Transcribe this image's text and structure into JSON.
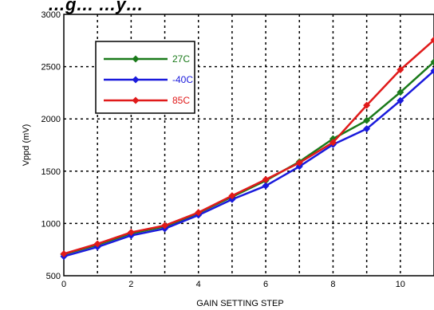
{
  "chart_data": {
    "type": "line",
    "title": "…g…   …y…",
    "xlabel": "GAIN SETTING STEP",
    "ylabel": "Vppd (mV)",
    "xlim": [
      0,
      11
    ],
    "ylim": [
      500,
      3000
    ],
    "x_ticks": [
      0,
      2,
      4,
      6,
      8,
      10
    ],
    "y_ticks": [
      500,
      1000,
      1500,
      2000,
      2500,
      3000
    ],
    "x_grid_step": 1,
    "y_grid_step": 500,
    "grid": true,
    "legend_position": "top-left",
    "x": [
      0,
      1,
      2,
      3,
      4,
      5,
      6,
      7,
      8,
      9,
      10,
      11
    ],
    "series": [
      {
        "name": "27C",
        "color": "#1a7a1a",
        "values": [
          705,
          795,
          905,
          970,
          1100,
          1255,
          1410,
          1590,
          1810,
          1985,
          2255,
          2545
        ]
      },
      {
        "name": "-40C",
        "color": "#1a1adc",
        "values": [
          685,
          775,
          885,
          950,
          1080,
          1230,
          1360,
          1545,
          1755,
          1905,
          2175,
          2460
        ]
      },
      {
        "name": "85C",
        "color": "#e01a1a",
        "values": [
          710,
          805,
          915,
          980,
          1105,
          1265,
          1420,
          1580,
          1775,
          2130,
          2470,
          2755
        ]
      }
    ]
  }
}
